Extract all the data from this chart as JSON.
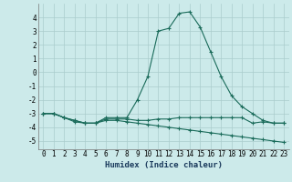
{
  "xlabel": "Humidex (Indice chaleur)",
  "background_color": "#cceaea",
  "grid_color": "#aacccc",
  "line_color": "#1a6b5a",
  "x_values": [
    0,
    1,
    2,
    3,
    4,
    5,
    6,
    7,
    8,
    9,
    10,
    11,
    12,
    13,
    14,
    15,
    16,
    17,
    18,
    19,
    20,
    21,
    22,
    23
  ],
  "series1": [
    -3.0,
    -3.0,
    -3.3,
    -3.6,
    -3.7,
    -3.7,
    -3.3,
    -3.3,
    -3.3,
    -2.0,
    -0.3,
    3.0,
    3.2,
    4.3,
    4.4,
    3.3,
    1.5,
    -0.3,
    -1.7,
    -2.5,
    -3.0,
    -3.5,
    -3.7,
    -3.7
  ],
  "series2": [
    -3.0,
    -3.0,
    -3.3,
    -3.5,
    -3.7,
    -3.7,
    -3.4,
    -3.4,
    -3.4,
    -3.5,
    -3.5,
    -3.4,
    -3.4,
    -3.3,
    -3.3,
    -3.3,
    -3.3,
    -3.3,
    -3.3,
    -3.3,
    -3.7,
    -3.6,
    -3.7,
    -3.7
  ],
  "series3": [
    -3.0,
    -3.0,
    -3.3,
    -3.5,
    -3.7,
    -3.7,
    -3.5,
    -3.5,
    -3.6,
    -3.7,
    -3.8,
    -3.9,
    -4.0,
    -4.1,
    -4.2,
    -4.3,
    -4.4,
    -4.5,
    -4.6,
    -4.7,
    -4.8,
    -4.9,
    -5.0,
    -5.1
  ],
  "ylim": [
    -5.6,
    5.0
  ],
  "yticks": [
    -5,
    -4,
    -3,
    -2,
    -1,
    0,
    1,
    2,
    3,
    4
  ],
  "xlim": [
    -0.5,
    23.5
  ],
  "xlabel_fontsize": 6.5,
  "tick_fontsize": 5.5
}
